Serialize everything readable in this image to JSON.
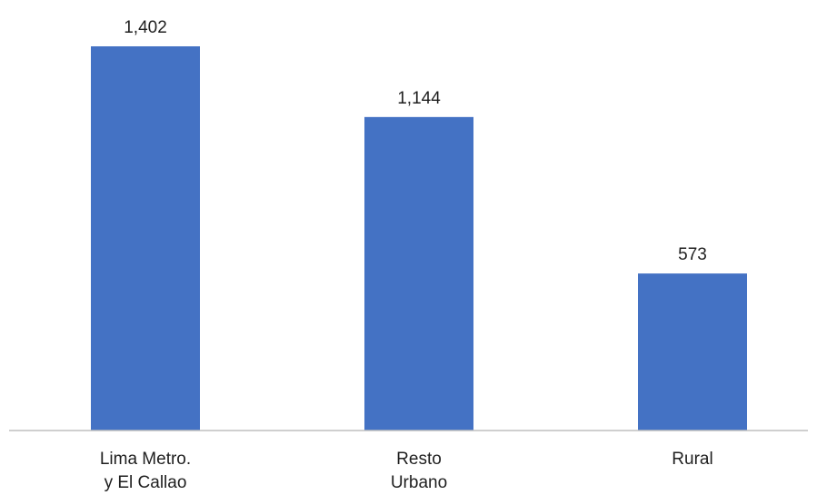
{
  "chart_data": {
    "type": "bar",
    "categories": [
      [
        "Lima Metro.",
        "y El Callao"
      ],
      [
        "Resto",
        "Urbano"
      ],
      [
        "Rural"
      ]
    ],
    "values": [
      1402,
      1144,
      573
    ],
    "value_labels": [
      "1,402",
      "1,144",
      "573"
    ],
    "title": "",
    "xlabel": "",
    "ylabel": "",
    "ylim": [
      0,
      1402
    ],
    "grid": false,
    "legend": "none",
    "colors": {
      "bar": "#4472c4",
      "axis": "#bfbfbf",
      "text": "#1f1f1f"
    }
  }
}
